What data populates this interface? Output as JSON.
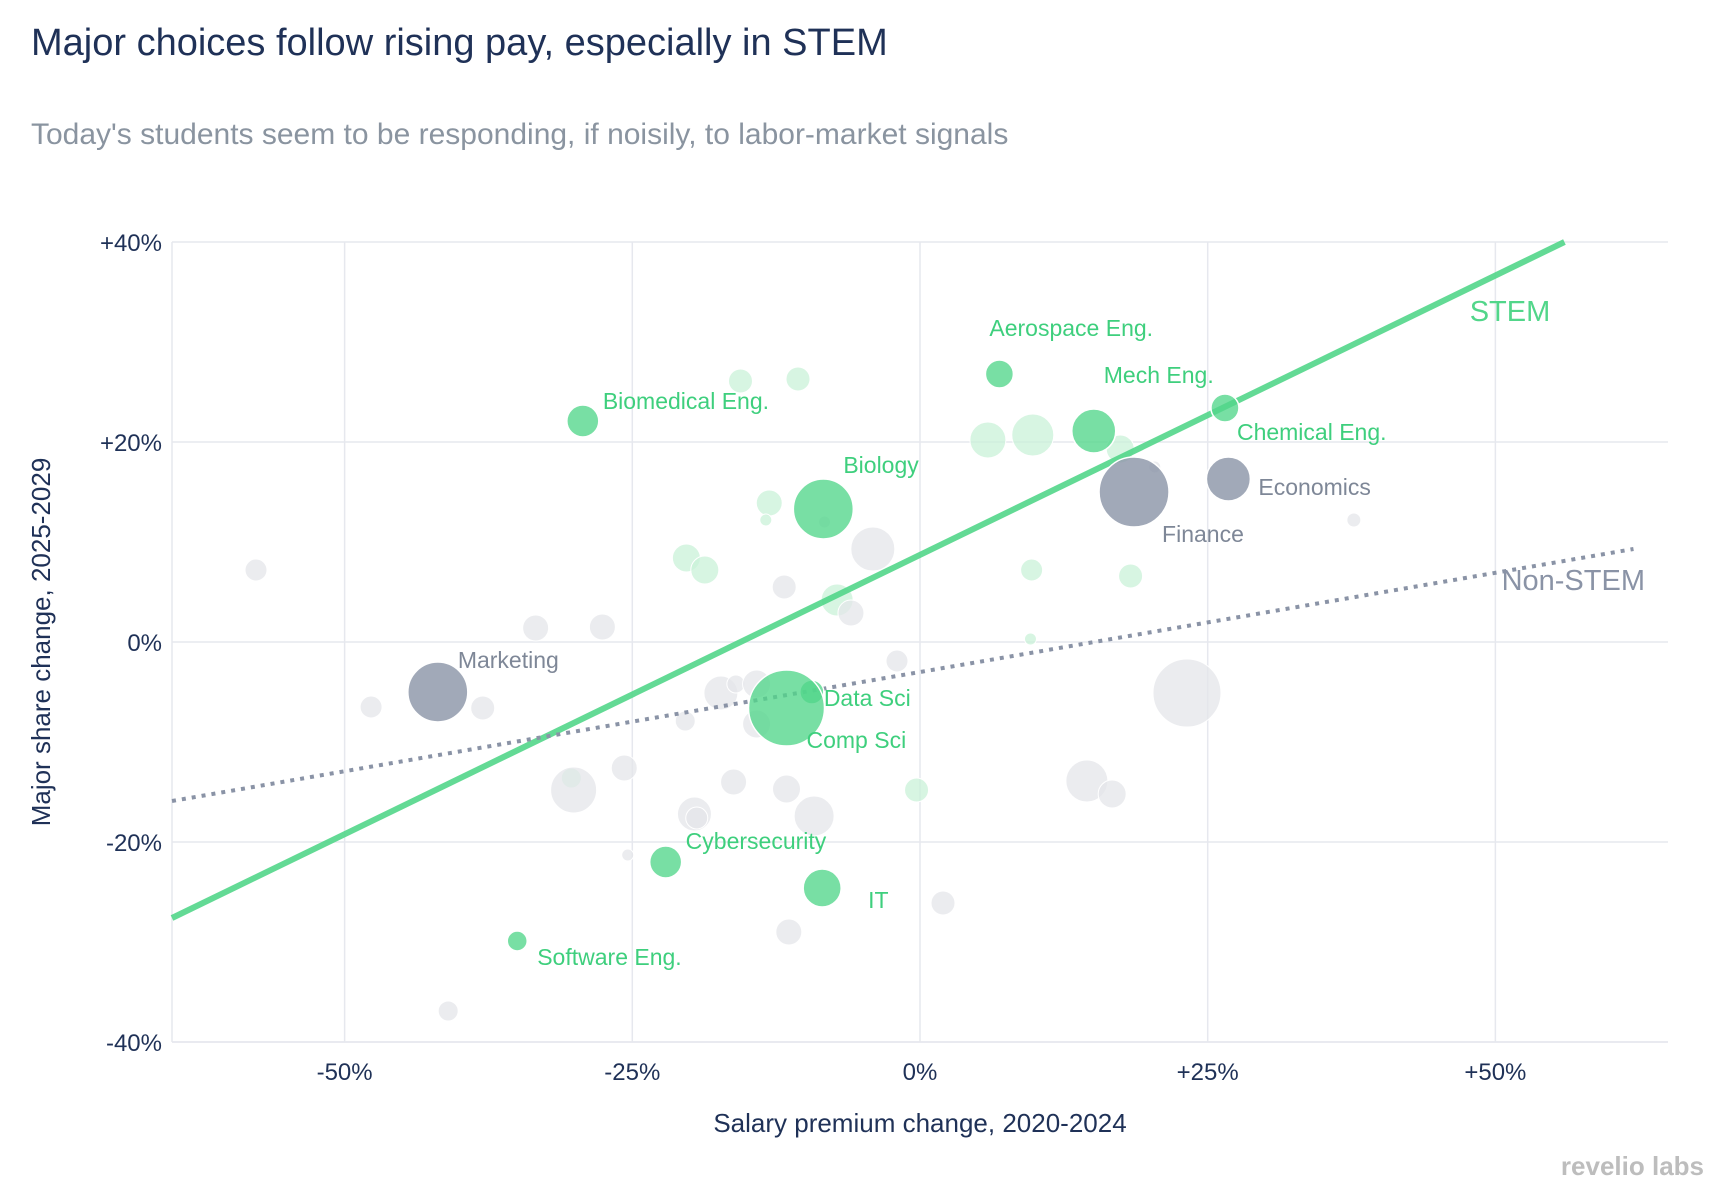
{
  "title": "Major choices follow rising pay, especially in STEM",
  "subtitle": "Today's students seem to be responding, if noisily, to labor-market signals",
  "watermark": "revelio labs",
  "colors": {
    "stem": "#52d68a",
    "non_stem": "#8a93a6",
    "stem_faded": "#c9f2d8",
    "non_stem_faded": "#e4e5ea",
    "text": "#1f3157",
    "grid": "#e6e8ee"
  },
  "chart_data": {
    "type": "scatter",
    "xlabel": "Salary premium change, 2020-2024",
    "ylabel": "Major share change, 2025-2029",
    "xlim": [
      -65,
      65
    ],
    "ylim": [
      -40,
      40
    ],
    "x_ticks": [
      {
        "value": -50,
        "label": "-50%"
      },
      {
        "value": -25,
        "label": "-25%"
      },
      {
        "value": 0,
        "label": "0%"
      },
      {
        "value": 25,
        "label": "+25%"
      },
      {
        "value": 50,
        "label": "+50%"
      }
    ],
    "y_ticks": [
      {
        "value": 40,
        "label": "+40%"
      },
      {
        "value": 20,
        "label": "+20%"
      },
      {
        "value": 0,
        "label": "0%"
      },
      {
        "value": -20,
        "label": "-20%"
      },
      {
        "value": -40,
        "label": "-40%"
      }
    ],
    "grid": true,
    "trend_lines": [
      {
        "name": "STEM",
        "group": "stem",
        "style": "solid",
        "x": [
          -65,
          56
        ],
        "y": [
          -27.6,
          40
        ]
      },
      {
        "name": "Non-STEM",
        "group": "non_stem",
        "style": "dotted",
        "x": [
          -65,
          62
        ],
        "y": [
          -15.9,
          9.3
        ]
      }
    ],
    "labeled_points": [
      {
        "label": "Aerospace Eng.",
        "group": "stem",
        "x": 6.9,
        "y": 26.8,
        "size": 14
      },
      {
        "label": "Mech Eng.",
        "group": "stem",
        "x": 15.1,
        "y": 21.1,
        "size": 22
      },
      {
        "label": "Chemical Eng.",
        "group": "stem",
        "x": 26.5,
        "y": 23.4,
        "size": 14
      },
      {
        "label": "Biomedical Eng.",
        "group": "stem",
        "x": -29.3,
        "y": 22.1,
        "size": 16
      },
      {
        "label": "Biology",
        "group": "stem",
        "x": -8.4,
        "y": 13.3,
        "size": 30
      },
      {
        "label": "Data Sci",
        "group": "stem",
        "x": -9.4,
        "y": -5.0,
        "size": 12
      },
      {
        "label": "Comp Sci",
        "group": "stem",
        "x": -11.6,
        "y": -6.6,
        "size": 38
      },
      {
        "label": "Cybersecurity",
        "group": "stem",
        "x": -22.1,
        "y": -22.0,
        "size": 16
      },
      {
        "label": "IT",
        "group": "stem",
        "x": -8.5,
        "y": -24.6,
        "size": 19
      },
      {
        "label": "Software Eng.",
        "group": "stem",
        "x": -35.0,
        "y": -29.9,
        "size": 10
      },
      {
        "label": "Finance",
        "group": "non_stem",
        "x": 18.6,
        "y": 15.0,
        "size": 35
      },
      {
        "label": "Economics",
        "group": "non_stem",
        "x": 26.8,
        "y": 16.3,
        "size": 22
      },
      {
        "label": "Marketing",
        "group": "non_stem",
        "x": -41.9,
        "y": -5.0,
        "size": 30
      }
    ],
    "background_points": [
      {
        "group": "stem",
        "x": -15.6,
        "y": 26.1,
        "size": 12
      },
      {
        "group": "stem",
        "x": -10.6,
        "y": 26.3,
        "size": 12
      },
      {
        "group": "stem",
        "x": 5.9,
        "y": 20.2,
        "size": 18
      },
      {
        "group": "stem",
        "x": 9.8,
        "y": 20.7,
        "size": 21
      },
      {
        "group": "stem",
        "x": 17.4,
        "y": 19.3,
        "size": 14
      },
      {
        "group": "stem",
        "x": -13.1,
        "y": 13.9,
        "size": 13
      },
      {
        "group": "stem",
        "x": -13.4,
        "y": 12.2,
        "size": 6
      },
      {
        "group": "stem",
        "x": -20.3,
        "y": 8.4,
        "size": 14
      },
      {
        "group": "stem",
        "x": -18.7,
        "y": 7.2,
        "size": 14
      },
      {
        "group": "stem",
        "x": -7.2,
        "y": 4.2,
        "size": 16
      },
      {
        "group": "stem",
        "x": 9.7,
        "y": 7.2,
        "size": 11
      },
      {
        "group": "stem",
        "x": 18.3,
        "y": 6.6,
        "size": 12
      },
      {
        "group": "stem",
        "x": 9.6,
        "y": 0.3,
        "size": 6
      },
      {
        "group": "stem",
        "x": -30.3,
        "y": -13.6,
        "size": 10
      },
      {
        "group": "stem",
        "x": -0.3,
        "y": -14.8,
        "size": 12
      },
      {
        "group": "non_stem",
        "x": -57.7,
        "y": 7.2,
        "size": 11
      },
      {
        "group": "non_stem",
        "x": -33.4,
        "y": 1.4,
        "size": 13
      },
      {
        "group": "non_stem",
        "x": -27.6,
        "y": 1.5,
        "size": 13
      },
      {
        "group": "non_stem",
        "x": -4.1,
        "y": 9.3,
        "size": 22
      },
      {
        "group": "non_stem",
        "x": -11.8,
        "y": 5.5,
        "size": 12
      },
      {
        "group": "non_stem",
        "x": -6.0,
        "y": 2.9,
        "size": 13
      },
      {
        "group": "non_stem",
        "x": -8.3,
        "y": 12.0,
        "size": 6
      },
      {
        "group": "non_stem",
        "x": 37.7,
        "y": 12.2,
        "size": 7
      },
      {
        "group": "non_stem",
        "x": -2.0,
        "y": -1.9,
        "size": 11
      },
      {
        "group": "non_stem",
        "x": -47.7,
        "y": -6.5,
        "size": 11
      },
      {
        "group": "non_stem",
        "x": -38.0,
        "y": -6.6,
        "size": 12
      },
      {
        "group": "non_stem",
        "x": -17.3,
        "y": -5.1,
        "size": 17
      },
      {
        "group": "non_stem",
        "x": -16.0,
        "y": -4.2,
        "size": 9
      },
      {
        "group": "non_stem",
        "x": -14.2,
        "y": -4.2,
        "size": 14
      },
      {
        "group": "non_stem",
        "x": -20.4,
        "y": -7.9,
        "size": 10
      },
      {
        "group": "non_stem",
        "x": -14.2,
        "y": -8.2,
        "size": 14
      },
      {
        "group": "non_stem",
        "x": 23.2,
        "y": -5.1,
        "size": 34
      },
      {
        "group": "non_stem",
        "x": -30.1,
        "y": -14.8,
        "size": 23
      },
      {
        "group": "non_stem",
        "x": -25.7,
        "y": -12.6,
        "size": 13
      },
      {
        "group": "non_stem",
        "x": -16.2,
        "y": -14.0,
        "size": 13
      },
      {
        "group": "non_stem",
        "x": -19.6,
        "y": -17.2,
        "size": 17
      },
      {
        "group": "non_stem",
        "x": -19.4,
        "y": -17.6,
        "size": 11
      },
      {
        "group": "non_stem",
        "x": -11.6,
        "y": -14.7,
        "size": 14
      },
      {
        "group": "non_stem",
        "x": -9.2,
        "y": -17.4,
        "size": 20
      },
      {
        "group": "non_stem",
        "x": 14.5,
        "y": -13.9,
        "size": 21
      },
      {
        "group": "non_stem",
        "x": 16.7,
        "y": -15.2,
        "size": 14
      },
      {
        "group": "non_stem",
        "x": -25.4,
        "y": -21.3,
        "size": 6
      },
      {
        "group": "non_stem",
        "x": 2.0,
        "y": -26.1,
        "size": 12
      },
      {
        "group": "non_stem",
        "x": -11.4,
        "y": -29.0,
        "size": 13
      },
      {
        "group": "non_stem",
        "x": -41.0,
        "y": -36.9,
        "size": 10
      },
      {
        "group": "non_stem",
        "x": 20.4,
        "y": 17.5,
        "size": 6
      }
    ],
    "line_labels": [
      {
        "text": "STEM",
        "group": "stem"
      },
      {
        "text": "Non-STEM",
        "group": "non_stem"
      }
    ]
  }
}
